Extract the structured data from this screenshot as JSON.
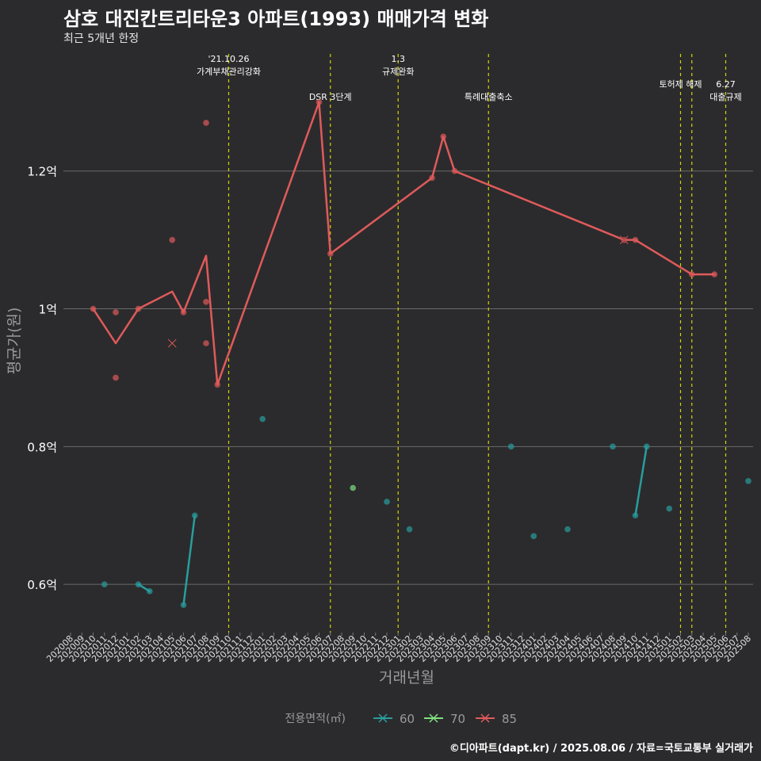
{
  "title": "삼호 대진칸트리타운3 아파트(1993) 매매가격 변화",
  "subtitle": "최근 5개년 한정",
  "caption": "©디아파트(dapt.kr) / 2025.08.06 / 자료=국토교통부 실거래가",
  "colors": {
    "background": "#2b2b2d",
    "grid": "#6a6a6a",
    "event_line": "#d4d400",
    "s60": "#2a9d9d",
    "s70": "#7fe07f",
    "s85": "#e05a5a"
  },
  "chart_data": {
    "type": "line",
    "xlabel": "거래년월",
    "ylabel": "평균가(원)",
    "x_categories": [
      "202008",
      "202009",
      "202010",
      "202011",
      "202012",
      "202101",
      "202102",
      "202103",
      "202104",
      "202105",
      "202106",
      "202107",
      "202108",
      "202109",
      "202110",
      "202111",
      "202112",
      "202201",
      "202202",
      "202203",
      "202204",
      "202205",
      "202206",
      "202207",
      "202208",
      "202209",
      "202210",
      "202211",
      "202212",
      "202301",
      "202302",
      "202303",
      "202304",
      "202305",
      "202306",
      "202307",
      "202308",
      "202309",
      "202310",
      "202311",
      "202312",
      "202401",
      "202402",
      "202403",
      "202404",
      "202405",
      "202406",
      "202407",
      "202408",
      "202409",
      "202410",
      "202411",
      "202412",
      "202501",
      "202502",
      "202503",
      "202504",
      "202505",
      "202506",
      "202507",
      "202508"
    ],
    "y_ticks": [
      {
        "value": 0.6,
        "label": "0.6억"
      },
      {
        "value": 0.8,
        "label": "0.8억"
      },
      {
        "value": 1.0,
        "label": "1억"
      },
      {
        "value": 1.2,
        "label": "1.2억"
      }
    ],
    "ylim": [
      0.53,
      1.37
    ],
    "legend_title": "전용면적(㎡)",
    "legend_position": "bottom",
    "grid": true,
    "series": [
      {
        "name": "60",
        "color_key": "s60",
        "line": [
          [
            "202102",
            0.6
          ],
          [
            "202103",
            0.59
          ],
          null,
          [
            "202106",
            0.57
          ],
          [
            "202107",
            0.7
          ],
          null,
          [
            "202410",
            0.7
          ],
          [
            "202411",
            0.8
          ]
        ],
        "points": [
          [
            "202011",
            0.6
          ],
          [
            "202102",
            0.6
          ],
          [
            "202103",
            0.59
          ],
          [
            "202106",
            0.57
          ],
          [
            "202107",
            0.7
          ],
          [
            "202201",
            0.84
          ],
          [
            "202212",
            0.72
          ],
          [
            "202302",
            0.68
          ],
          [
            "202311",
            0.8
          ],
          [
            "202401",
            0.67
          ],
          [
            "202404",
            0.68
          ],
          [
            "202408",
            0.8
          ],
          [
            "202410",
            0.7
          ],
          [
            "202411",
            0.8
          ],
          [
            "202501",
            0.71
          ],
          [
            "202508",
            0.75
          ]
        ],
        "cancelled": []
      },
      {
        "name": "70",
        "color_key": "s70",
        "line": [],
        "points": [
          [
            "202209",
            0.74
          ]
        ],
        "cancelled": []
      },
      {
        "name": "85",
        "color_key": "s85",
        "line": [
          [
            "202010",
            1.0
          ],
          [
            "202012",
            0.95
          ],
          [
            "202102",
            1.0
          ],
          [
            "202105",
            1.025
          ],
          [
            "202106",
            0.995
          ],
          [
            "202108",
            1.077
          ],
          [
            "202109",
            0.89
          ],
          [
            "202206",
            1.3
          ],
          [
            "202207",
            1.08
          ],
          [
            "202304",
            1.19
          ],
          [
            "202305",
            1.25
          ],
          [
            "202306",
            1.2
          ],
          [
            "202409",
            1.1
          ],
          [
            "202410",
            1.1
          ],
          [
            "202503",
            1.05
          ],
          [
            "202505",
            1.05
          ]
        ],
        "points": [
          [
            "202010",
            1.0
          ],
          [
            "202012",
            0.995
          ],
          [
            "202012",
            0.9
          ],
          [
            "202102",
            1.0
          ],
          [
            "202105",
            1.1
          ],
          [
            "202106",
            0.995
          ],
          [
            "202108",
            1.27
          ],
          [
            "202108",
            1.01
          ],
          [
            "202108",
            0.95
          ],
          [
            "202109",
            0.89
          ],
          [
            "202206",
            1.3
          ],
          [
            "202207",
            1.08
          ],
          [
            "202304",
            1.19
          ],
          [
            "202305",
            1.25
          ],
          [
            "202306",
            1.2
          ],
          [
            "202409",
            1.1
          ],
          [
            "202410",
            1.1
          ],
          [
            "202503",
            1.05
          ],
          [
            "202505",
            1.05
          ]
        ],
        "cancelled": [
          [
            "202105",
            0.95
          ],
          [
            "202409",
            1.1
          ]
        ]
      }
    ],
    "events": [
      {
        "x": "202110",
        "label_lines": [
          "'21.10.26",
          "가계부채관리강화"
        ],
        "label_row": 0
      },
      {
        "x": "202207",
        "label_lines": [
          "DSR 3단계"
        ],
        "label_row": 2
      },
      {
        "x": "202301",
        "label_lines": [
          "1.3",
          "규제완화"
        ],
        "label_row": 0
      },
      {
        "x": "202309",
        "label_lines": [
          "특례대출축소"
        ],
        "label_row": 2
      },
      {
        "x": "202502",
        "label_lines": [
          "토허제 해제"
        ],
        "label_row": 1
      },
      {
        "x": "202503",
        "label_lines": [],
        "label_row": 1
      },
      {
        "x": "202506",
        "label_lines": [
          "6.27",
          "대출규제"
        ],
        "label_row": 2
      }
    ]
  }
}
